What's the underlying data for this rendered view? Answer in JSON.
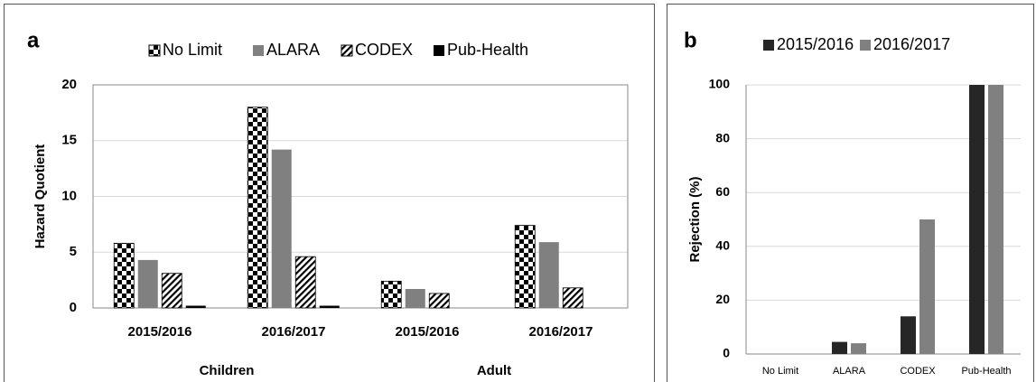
{
  "chart_data": [
    {
      "type": "bar",
      "panel_label": "a",
      "y_label": "Hazard Quotient",
      "categories": [
        "2015/2016",
        "2016/2017",
        "2015/2016",
        "2016/2017"
      ],
      "group_labels": [
        "Children",
        "Adult"
      ],
      "series": [
        {
          "name": "No Limit",
          "color": "checker",
          "values": [
            5.8,
            18,
            2.4,
            7.4
          ]
        },
        {
          "name": "ALARA",
          "color": "#808080",
          "values": [
            4.3,
            14.2,
            1.7,
            5.9
          ]
        },
        {
          "name": "CODEX",
          "color": "hatch",
          "values": [
            3.1,
            4.6,
            1.3,
            1.8
          ]
        },
        {
          "name": "Pub-Health",
          "color": "#000000",
          "values": [
            0.2,
            0.2,
            0,
            0
          ]
        }
      ],
      "ylim": [
        0,
        20
      ],
      "yticks": [
        0,
        5,
        10,
        15,
        20
      ],
      "grid": true
    },
    {
      "type": "bar",
      "panel_label": "b",
      "y_label": "Rejection (%)",
      "categories": [
        "No Limit",
        "ALARA",
        "CODEX",
        "Pub-Health"
      ],
      "series": [
        {
          "name": "2015/2016",
          "color": "#262626",
          "values": [
            0,
            4.5,
            14,
            100
          ]
        },
        {
          "name": "2016/2017",
          "color": "#808080",
          "values": [
            0,
            4,
            50,
            100
          ]
        }
      ],
      "ylim": [
        0,
        100
      ],
      "yticks": [
        0,
        20,
        40,
        60,
        80,
        100
      ],
      "grid": true
    }
  ]
}
